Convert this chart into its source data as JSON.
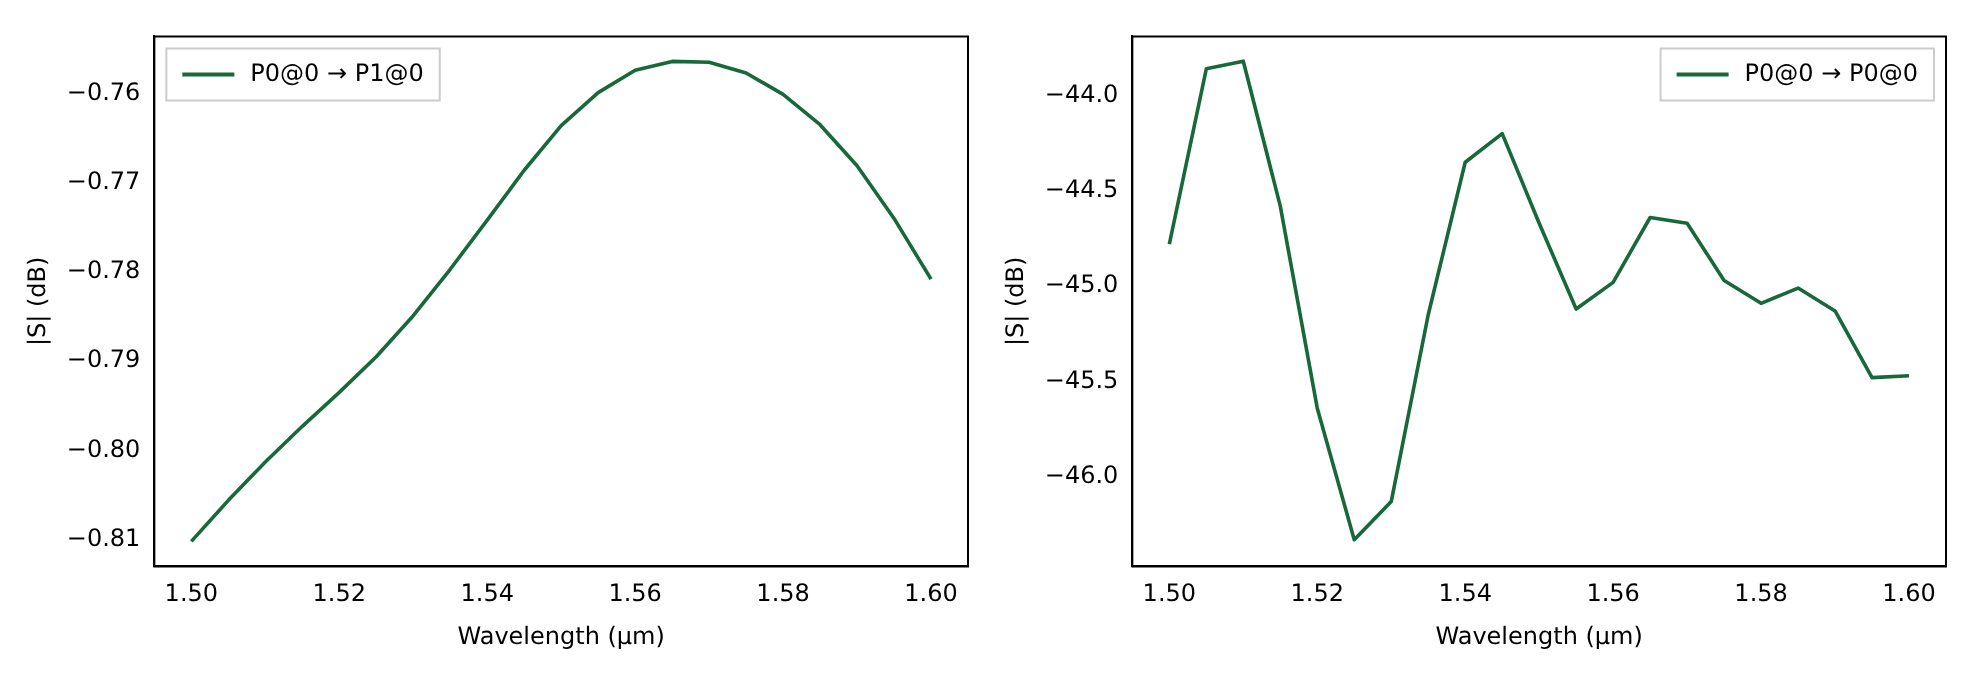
{
  "chart_data": [
    {
      "type": "line",
      "xlabel": "Wavelength (μm)",
      "ylabel": "|S| (dB)",
      "legend": "top left",
      "grid": false,
      "x": [
        1.5,
        1.505,
        1.51,
        1.515,
        1.52,
        1.525,
        1.53,
        1.535,
        1.54,
        1.545,
        1.55,
        1.555,
        1.56,
        1.565,
        1.57,
        1.575,
        1.58,
        1.585,
        1.59,
        1.595,
        1.6
      ],
      "series": [
        {
          "name": "P0@0 → P1@0",
          "color": "#17693a",
          "values": [
            -0.8102,
            -0.8056,
            -0.8013,
            -0.7973,
            -0.7935,
            -0.7895,
            -0.7849,
            -0.7797,
            -0.7742,
            -0.7686,
            -0.7636,
            -0.7599,
            -0.7574,
            -0.7564,
            -0.7565,
            -0.7577,
            -0.7601,
            -0.7635,
            -0.7681,
            -0.774,
            -0.7808
          ]
        }
      ],
      "xlim": [
        1.495,
        1.605
      ],
      "xticks": [
        {
          "value": 1.5,
          "label": "1.50"
        },
        {
          "value": 1.52,
          "label": "1.52"
        },
        {
          "value": 1.54,
          "label": "1.54"
        },
        {
          "value": 1.56,
          "label": "1.56"
        },
        {
          "value": 1.58,
          "label": "1.58"
        },
        {
          "value": 1.6,
          "label": "1.60"
        }
      ],
      "ylim": [
        -0.813,
        -0.7536
      ],
      "yticks": [
        {
          "value": -0.81,
          "label": "−0.81"
        },
        {
          "value": -0.8,
          "label": "−0.80"
        },
        {
          "value": -0.79,
          "label": "−0.79"
        },
        {
          "value": -0.78,
          "label": "−0.78"
        },
        {
          "value": -0.77,
          "label": "−0.77"
        },
        {
          "value": -0.76,
          "label": "−0.76"
        }
      ]
    },
    {
      "type": "line",
      "xlabel": "Wavelength (μm)",
      "ylabel": "|S| (dB)",
      "legend": "top right",
      "grid": false,
      "x": [
        1.5,
        1.505,
        1.51,
        1.515,
        1.52,
        1.525,
        1.53,
        1.535,
        1.54,
        1.545,
        1.55,
        1.555,
        1.56,
        1.565,
        1.57,
        1.575,
        1.58,
        1.585,
        1.59,
        1.595,
        1.6
      ],
      "series": [
        {
          "name": "P0@0 → P0@0",
          "color": "#17693a",
          "values": [
            -44.78,
            -43.86,
            -43.82,
            -44.58,
            -45.64,
            -46.33,
            -46.13,
            -45.15,
            -44.35,
            -44.2,
            -44.67,
            -45.12,
            -44.98,
            -44.64,
            -44.67,
            -44.97,
            -45.09,
            -45.01,
            -45.13,
            -45.48,
            -45.47
          ]
        }
      ],
      "xlim": [
        1.495,
        1.605
      ],
      "xticks": [
        {
          "value": 1.5,
          "label": "1.50"
        },
        {
          "value": 1.52,
          "label": "1.52"
        },
        {
          "value": 1.54,
          "label": "1.54"
        },
        {
          "value": 1.56,
          "label": "1.56"
        },
        {
          "value": 1.58,
          "label": "1.58"
        },
        {
          "value": 1.6,
          "label": "1.60"
        }
      ],
      "ylim": [
        -46.47,
        -43.69
      ],
      "yticks": [
        {
          "value": -46,
          "label": "−46.0"
        },
        {
          "value": -45.5,
          "label": "−45.5"
        },
        {
          "value": -45,
          "label": "−45.0"
        },
        {
          "value": -44.5,
          "label": "−44.5"
        },
        {
          "value": -44,
          "label": "−44.0"
        }
      ]
    }
  ]
}
